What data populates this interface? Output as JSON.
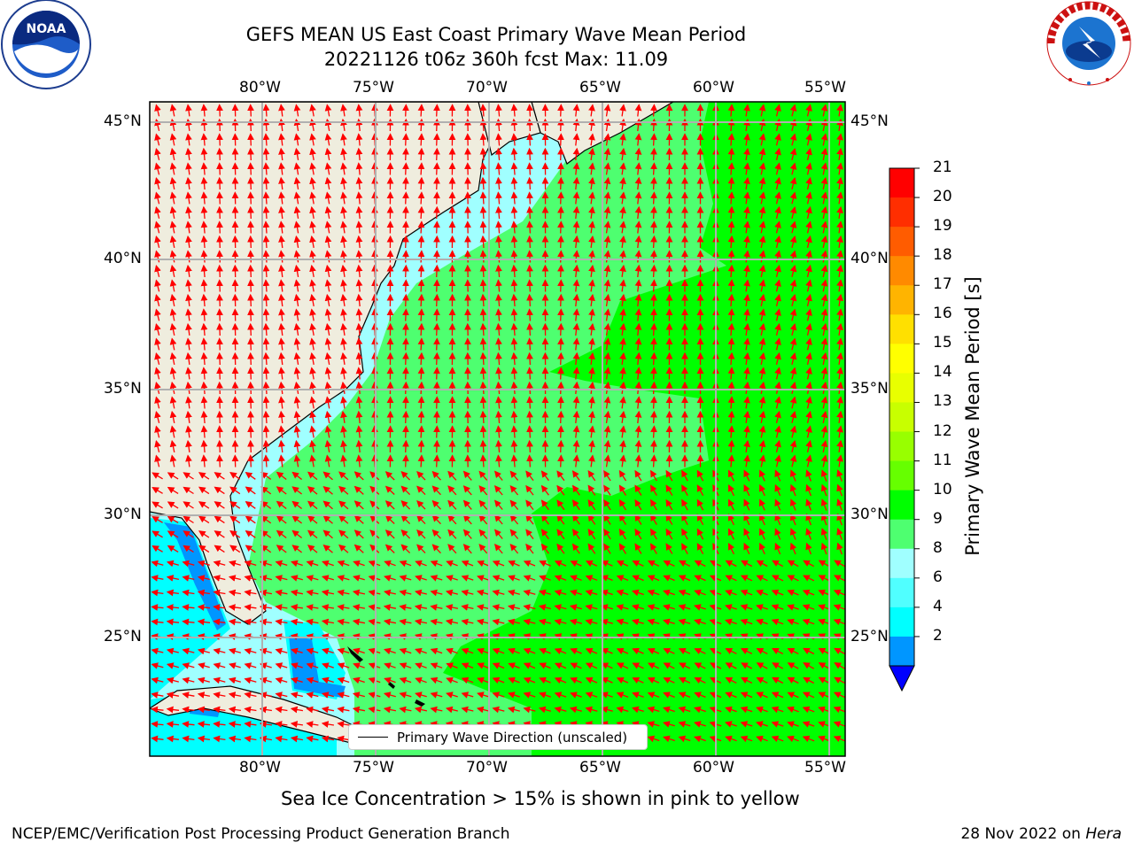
{
  "header": {
    "title_line1": "GEFS MEAN US East Coast Primary Wave Mean Period",
    "title_line2": "20221126 t06z 360h fcst   Max: 11.09"
  },
  "logos": {
    "left": {
      "icon": "noaa-logo",
      "text": "NOAA"
    },
    "right": {
      "icon": "nws-logo",
      "text": "NATIONAL WEATHER SERVICE"
    }
  },
  "map": {
    "lon_labels": [
      "80°W",
      "75°W",
      "70°W",
      "65°W",
      "60°W",
      "55°W"
    ],
    "lat_labels": [
      "45°N",
      "40°N",
      "35°N",
      "30°N",
      "25°N"
    ],
    "legend_label": "Primary Wave Direction (unscaled)",
    "arrow_color": "#ff0000",
    "land_color": "#efedde"
  },
  "colorbar": {
    "label": "Primary Wave Mean Period [s]",
    "ticks": [
      "21",
      "20",
      "19",
      "18",
      "17",
      "16",
      "15",
      "14",
      "13",
      "12",
      "11",
      "10",
      "9",
      "8",
      "6",
      "4",
      "2"
    ],
    "colors_top_to_bottom": [
      "#ff0000",
      "#ff2e00",
      "#ff5c00",
      "#ff8a00",
      "#ffb400",
      "#ffe000",
      "#ffff00",
      "#e8ff00",
      "#c8ff00",
      "#98ff00",
      "#66ff00",
      "#00ff00",
      "#4eff70",
      "#a0ffff",
      "#50ffff",
      "#00ffff",
      "#0096ff",
      "#0000ff"
    ]
  },
  "footer": {
    "subtitle": "Sea Ice Concentration > 15% is shown in pink to yellow",
    "left": "NCEP/EMC/Verification Post Processing Product Generation Branch",
    "right_date": "28 Nov 2022 on ",
    "right_host": "Hera"
  }
}
